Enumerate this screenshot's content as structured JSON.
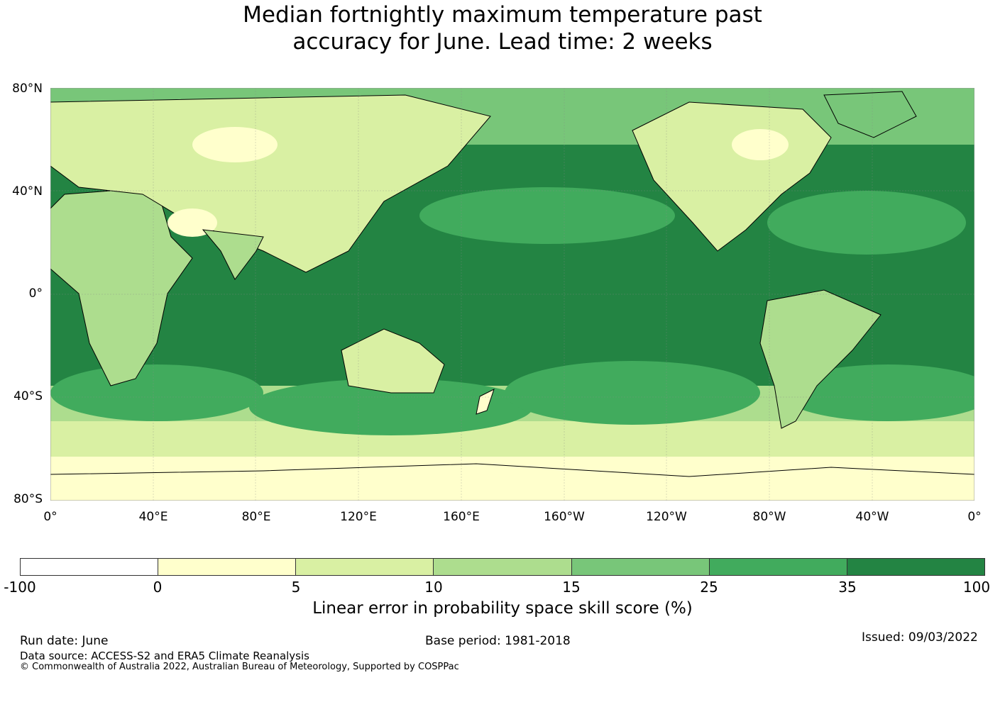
{
  "title": {
    "line1": "Median fortnightly maximum temperature past",
    "line2": "accuracy for June. Lead time: 2 weeks"
  },
  "map": {
    "lat_labels": [
      "80°N",
      "40°N",
      "0°",
      "40°S",
      "80°S"
    ],
    "lon_labels": [
      "0°",
      "40°E",
      "80°E",
      "120°E",
      "160°E",
      "160°W",
      "120°W",
      "80°W",
      "40°W",
      "0°"
    ],
    "ocean_color": "#238443",
    "land_colors": [
      "#ffffcc",
      "#d9f0a3",
      "#addd8e",
      "#78c679",
      "#41ab5d"
    ]
  },
  "colorbar": {
    "colors": [
      "#ffffff",
      "#ffffcc",
      "#d9f0a3",
      "#addd8e",
      "#78c679",
      "#41ab5d",
      "#238443"
    ],
    "ticks": [
      "-100",
      "0",
      "5",
      "10",
      "15",
      "25",
      "35",
      "100"
    ],
    "label": "Linear error in probability space skill score (%)"
  },
  "footer": {
    "run_date": "Run date: June",
    "base_period": "Base period: 1981-2018",
    "issued": "Issued: 09/03/2022",
    "data_source": "Data source: ACCESS-S2 and ERA5 Climate Reanalysis",
    "copyright": "© Commonwealth of Australia 2022, Australian Bureau of Meteorology, Supported by COSPPac"
  }
}
